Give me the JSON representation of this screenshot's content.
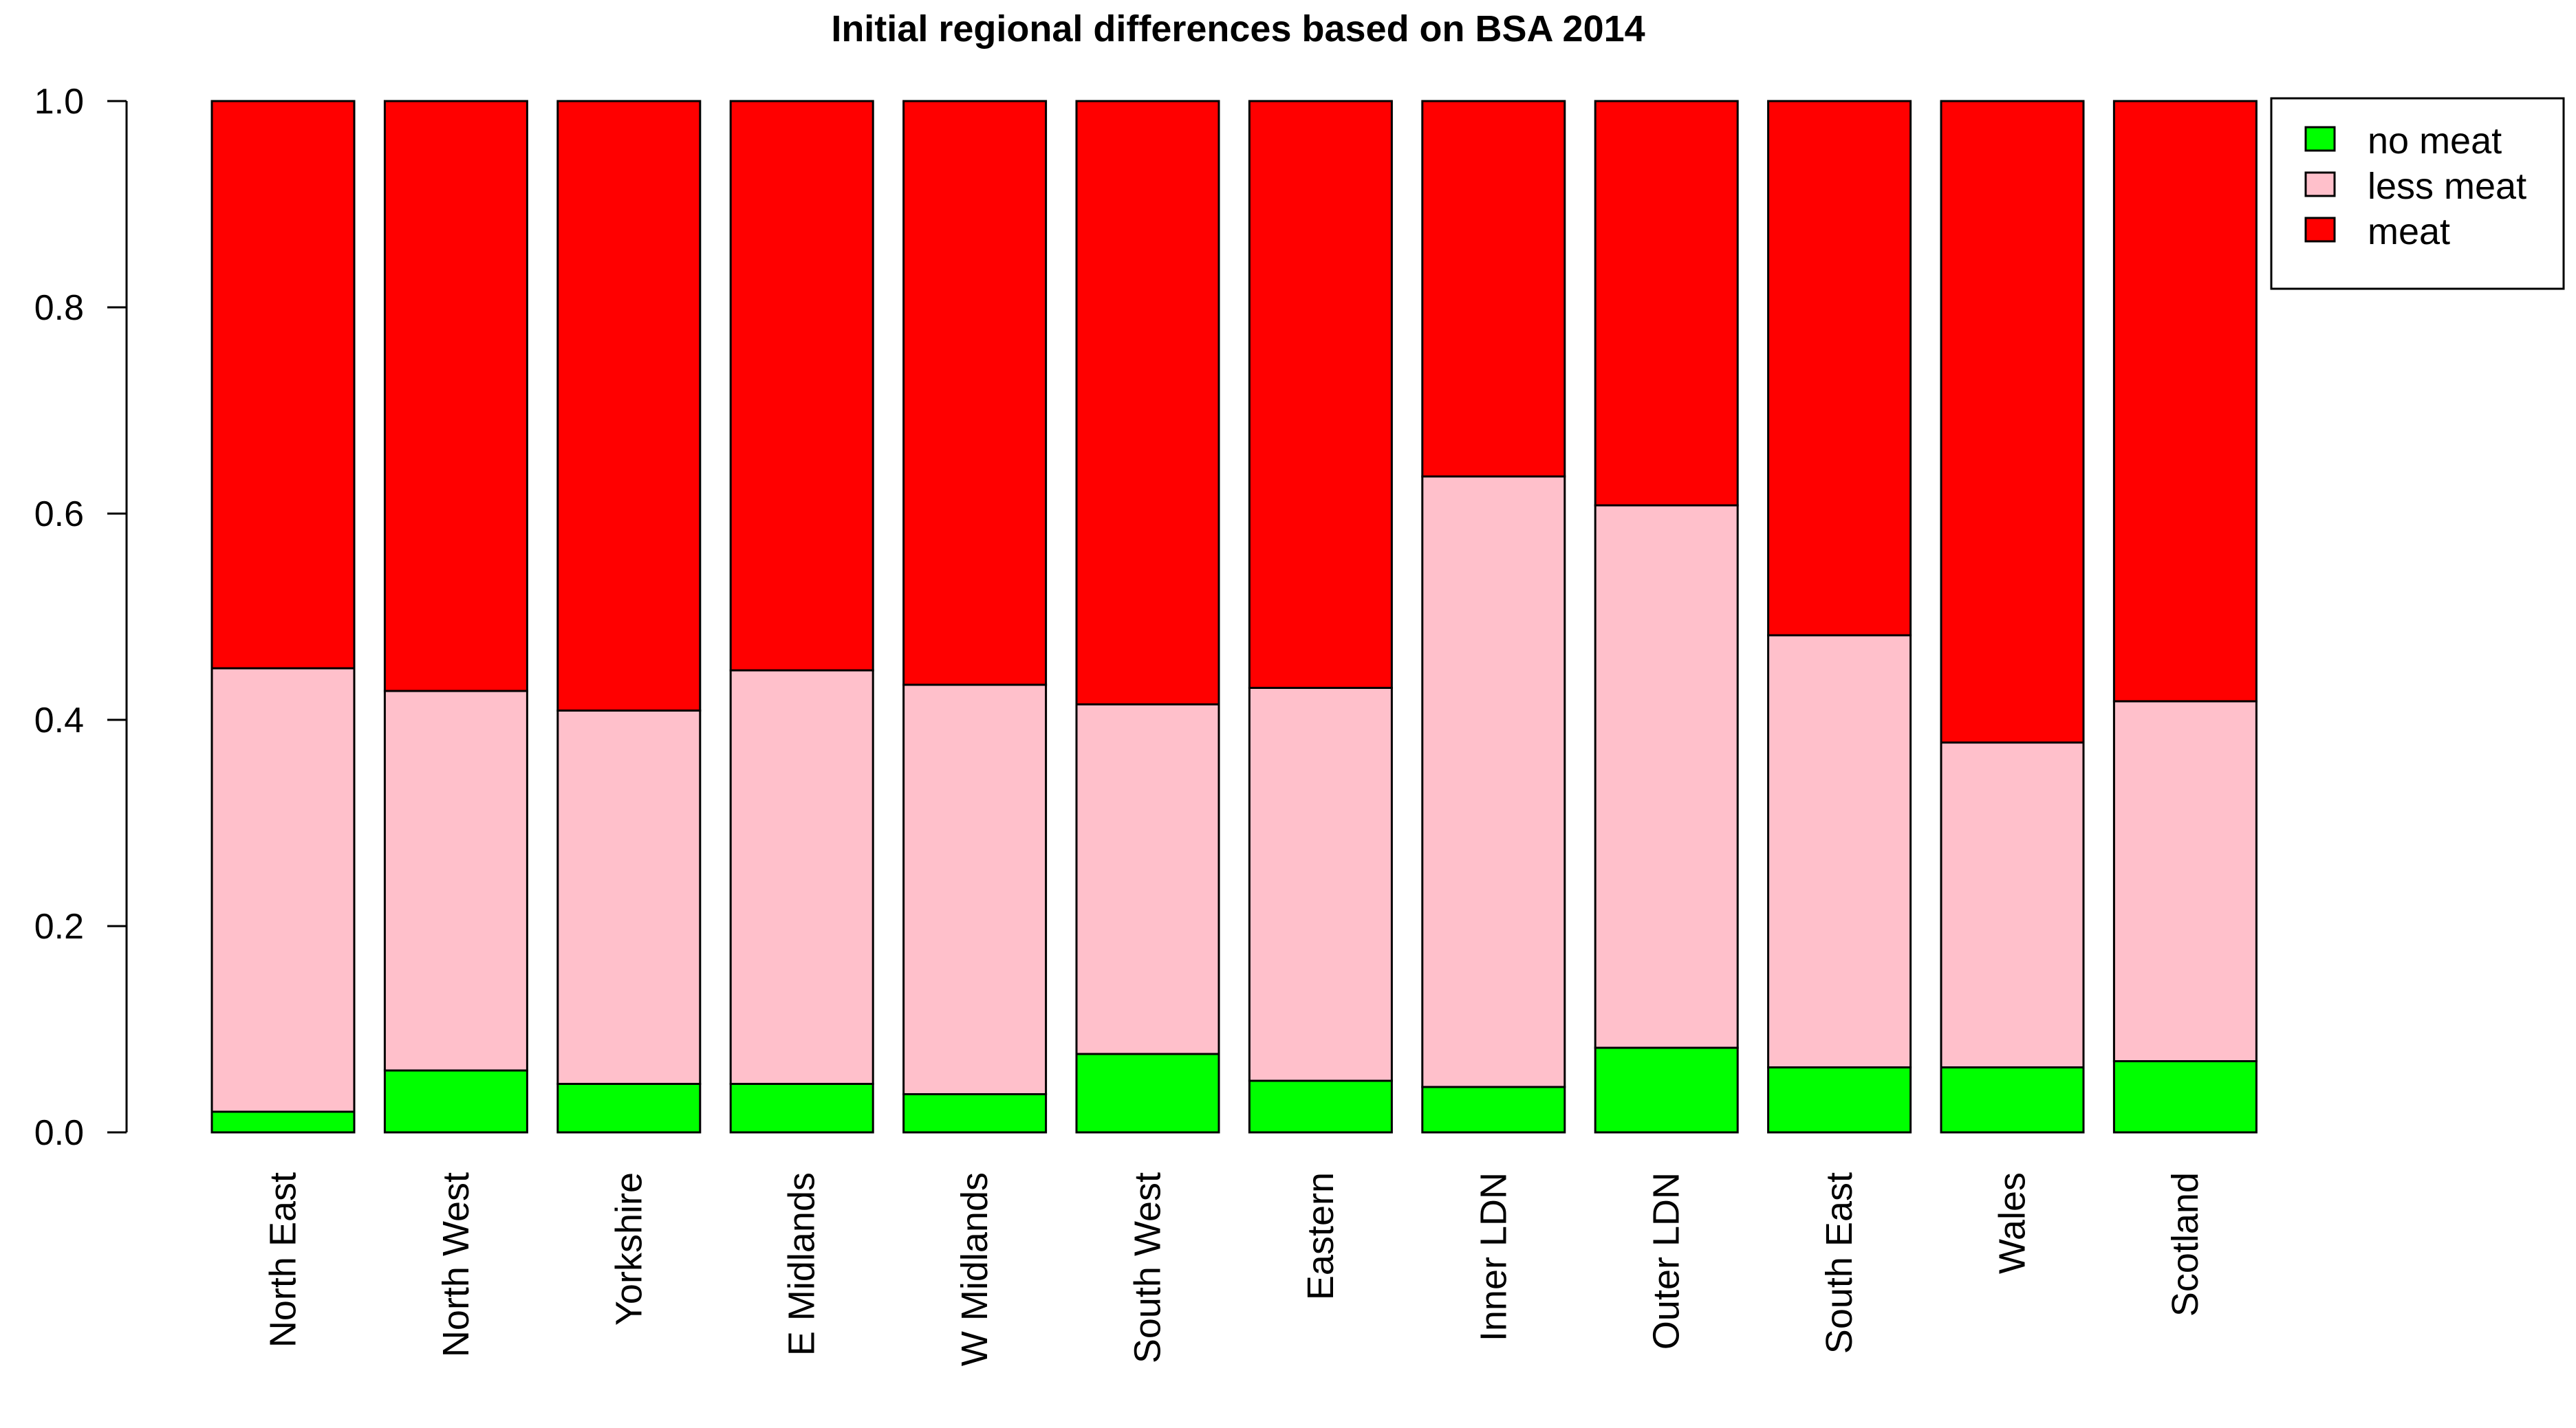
{
  "chart_data": {
    "type": "bar",
    "stacked": true,
    "title": "Initial regional differences based on BSA 2014",
    "xlabel": "",
    "ylabel": "",
    "ylim": [
      0,
      1
    ],
    "yticks": [
      "0.0",
      "0.2",
      "0.4",
      "0.6",
      "0.8",
      "1.0"
    ],
    "grid": false,
    "legend_position": "top-right",
    "categories": [
      "North East",
      "North West",
      "Yorkshire",
      "E Midlands",
      "W Midlands",
      "South West",
      "Eastern",
      "Inner LDN",
      "Outer LDN",
      "South East",
      "Wales",
      "Scotland"
    ],
    "series": [
      {
        "name": "no meat",
        "color": "#00ff00",
        "values": [
          0.02,
          0.06,
          0.047,
          0.047,
          0.037,
          0.076,
          0.05,
          0.044,
          0.082,
          0.063,
          0.063,
          0.069
        ]
      },
      {
        "name": "less meat",
        "color": "#ffc0cb",
        "values": [
          0.43,
          0.368,
          0.362,
          0.401,
          0.397,
          0.339,
          0.381,
          0.592,
          0.526,
          0.419,
          0.315,
          0.349
        ]
      },
      {
        "name": "meat",
        "color": "#ff0000",
        "values": [
          0.55,
          0.572,
          0.591,
          0.552,
          0.566,
          0.585,
          0.569,
          0.364,
          0.392,
          0.518,
          0.622,
          0.582
        ]
      }
    ]
  }
}
